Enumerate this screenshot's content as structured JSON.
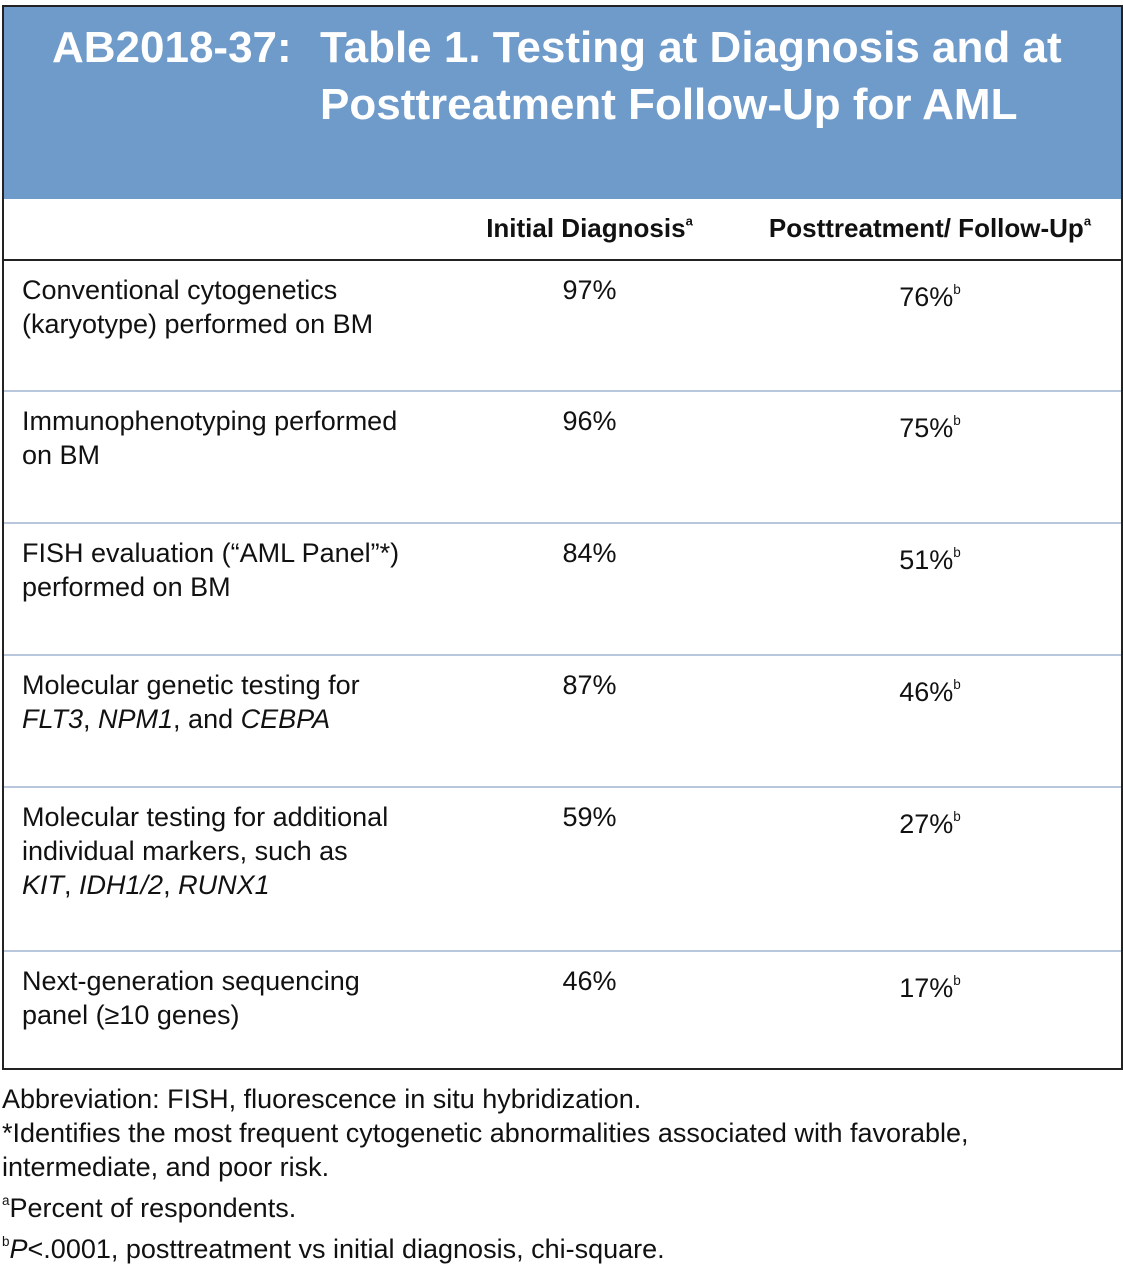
{
  "title": {
    "label": "AB2018-37:",
    "text": "Table 1. Testing at Diagnosis and at Posttreatment Follow-Up for AML"
  },
  "table": {
    "columns": [
      {
        "text": "Initial Diagnosis",
        "note": "a"
      },
      {
        "text": "Posttreatment/ Follow-Up",
        "note": "a"
      }
    ],
    "rows": [
      {
        "label": [
          {
            "text": "Conventional cytogenetics (karyotype) performed on BM"
          }
        ],
        "initial": "97%",
        "post": {
          "text": "76%",
          "note": "b"
        }
      },
      {
        "label": [
          {
            "text": "Immunophenotyping performed on BM"
          }
        ],
        "initial": "96%",
        "post": {
          "text": "75%",
          "note": "b"
        }
      },
      {
        "label": [
          {
            "text": "FISH evaluation (“AML Panel”*) performed on BM"
          }
        ],
        "initial": "84%",
        "post": {
          "text": "51%",
          "note": "b"
        }
      },
      {
        "label": [
          {
            "text": "Molecular genetic testing for "
          },
          {
            "text": "FLT3",
            "italic": true
          },
          {
            "text": ", "
          },
          {
            "text": "NPM1",
            "italic": true
          },
          {
            "text": ", and "
          },
          {
            "text": "CEBPA",
            "italic": true
          }
        ],
        "initial": "87%",
        "post": {
          "text": "46%",
          "note": "b"
        }
      },
      {
        "label": [
          {
            "text": "Molecular testing for additional individual markers, such as "
          },
          {
            "text": "KIT",
            "italic": true
          },
          {
            "text": ", "
          },
          {
            "text": "IDH1/2",
            "italic": true
          },
          {
            "text": ", "
          },
          {
            "text": "RUNX1",
            "italic": true
          }
        ],
        "initial": "59%",
        "post": {
          "text": "27%",
          "note": "b"
        }
      },
      {
        "label": [
          {
            "text": "Next-generation sequencing panel (≥10 genes)"
          }
        ],
        "initial": "46%",
        "post": {
          "text": "17%",
          "note": "b"
        }
      }
    ]
  },
  "footnotes": [
    [
      {
        "text": "Abbreviation: FISH, fluorescence in situ hybridization."
      }
    ],
    [
      {
        "text": "*Identifies the most frequent cytogenetic abnormalities associated with favorable, intermediate, and poor risk."
      }
    ],
    [
      {
        "note": "a"
      },
      {
        "text": "Percent of respondents."
      }
    ],
    [
      {
        "note": "b"
      },
      {
        "text": "P",
        "italic": true
      },
      {
        "text": "<.0001, posttreatment vs initial diagnosis, chi-square."
      }
    ]
  ]
}
